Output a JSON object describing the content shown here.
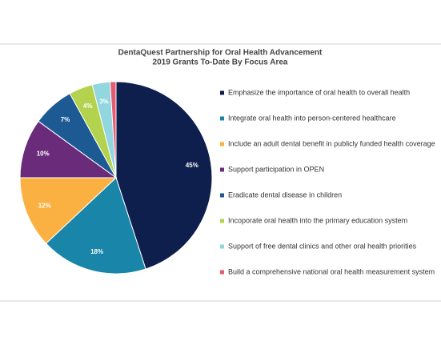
{
  "chart_data": {
    "type": "pie",
    "title": "DentaQuest Partnership for Oral Health Advancement",
    "subtitle": "2019 Grants To-Date By Focus Area",
    "categories": [
      "Emphasize the importance of oral health to overall health",
      "Integrate oral health into person-centered healthcare",
      "Include an adult dental benefit in publicly funded health coverage",
      "Support participation in OPEN",
      "Eradicate dental disease in children",
      "Incoporate oral health into the primary education system",
      "Support of free dental clinics and other oral health priorities",
      "Build a comprehensive national oral health measurement system"
    ],
    "values": [
      45,
      18,
      12,
      10,
      7,
      4,
      3,
      1
    ],
    "value_labels": [
      "45%",
      "18%",
      "12%",
      "10%",
      "7%",
      "4%",
      "3%",
      null
    ],
    "colors": [
      "#0e1f4d",
      "#1985a9",
      "#fbb142",
      "#6a2c7a",
      "#1d5a93",
      "#b3d34f",
      "#92d6df",
      "#e45b72"
    ],
    "legend": "right"
  }
}
